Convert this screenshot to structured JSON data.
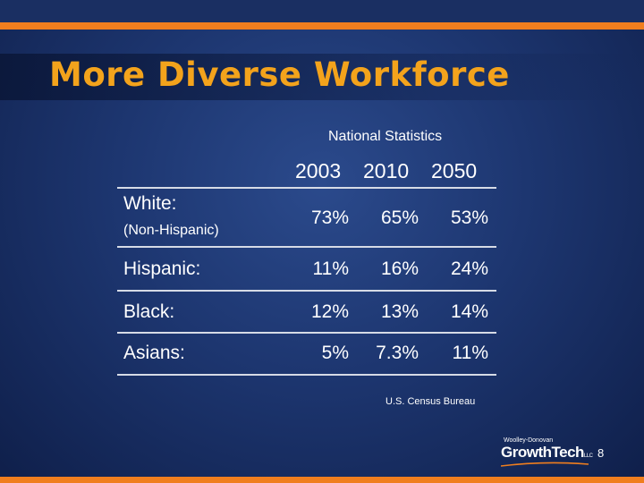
{
  "slide": {
    "title": "More Diverse Workforce",
    "subtitle": "National Statistics",
    "source": "U.S. Census Bureau",
    "page_number": "8",
    "colors": {
      "title": "#f3a31c",
      "accent_bar": "#f07e1e",
      "background": "#1d3670",
      "text": "#ffffff"
    }
  },
  "table": {
    "years": [
      "2003",
      "2010",
      "2050"
    ],
    "rows": [
      {
        "label": "White:",
        "sublabel": "(Non-Hispanic)",
        "values": [
          "73%",
          "65%",
          "53%"
        ]
      },
      {
        "label": "Hispanic:",
        "values": [
          "11%",
          "16%",
          "24%"
        ]
      },
      {
        "label": "Black:",
        "values": [
          "12%",
          "13%",
          "14%"
        ]
      },
      {
        "label": "Asians:",
        "values": [
          "5%",
          "7.3%",
          "11%"
        ]
      }
    ]
  },
  "logo": {
    "small_text": "Woolley-Donovan",
    "main_text": "GrowthTech",
    "suffix": "LLC"
  }
}
